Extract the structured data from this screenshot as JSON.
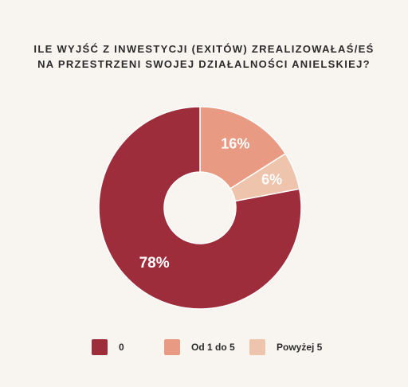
{
  "chart_data": {
    "type": "pie",
    "title_lines": [
      "ILE WYJŚĆ Z INWESTYCJI (EXITÓW) ZREALIZOWAŁAŚ/EŚ",
      "NA PRZESTRZENI SWOJEJ DZIAŁALNOŚCI ANIELSKIEJ?"
    ],
    "donut": true,
    "slices": [
      {
        "label": "Od 1 do 5",
        "value": 16,
        "display": "16%",
        "color": "#e89a82"
      },
      {
        "label": "Powyżej 5",
        "value": 6,
        "display": "6%",
        "color": "#efc4ac"
      },
      {
        "label": "0",
        "value": 78,
        "display": "78%",
        "color": "#9d2d3b"
      }
    ],
    "legend": [
      {
        "label": "0",
        "color": "#9d2d3b"
      },
      {
        "label": "Od 1 do 5",
        "color": "#e89a82"
      },
      {
        "label": "Powyżej 5",
        "color": "#efc4ac"
      }
    ],
    "legend_position": "bottom"
  }
}
